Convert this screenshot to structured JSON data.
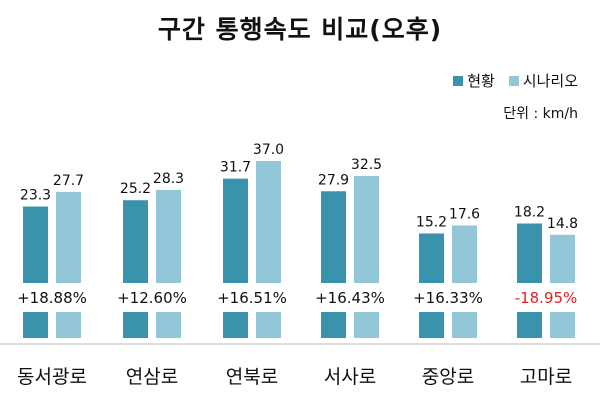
{
  "chart_data": {
    "type": "bar",
    "title": "구간 통행속도 비교(오후)",
    "unit_label": "단위 : km/h",
    "categories": [
      "동서광로",
      "연삼로",
      "연북로",
      "서사로",
      "중앙로",
      "고마로"
    ],
    "series": [
      {
        "name": "현황",
        "values": [
          23.3,
          25.2,
          31.7,
          27.9,
          15.2,
          18.2
        ]
      },
      {
        "name": "시나리오",
        "values": [
          27.7,
          28.3,
          37.0,
          32.5,
          17.6,
          14.8
        ]
      }
    ],
    "change_labels": [
      "+18.88%",
      "+12.60%",
      "+16.51%",
      "+16.43%",
      "+16.33%",
      "-18.95%"
    ],
    "ylim": [
      0,
      37
    ],
    "legend_position": "top-right",
    "grid": false
  },
  "colors": {
    "current": "#3a93ad",
    "scenario": "#93c7d8",
    "positive_text": "#111111",
    "negative_text": "#e02020"
  }
}
